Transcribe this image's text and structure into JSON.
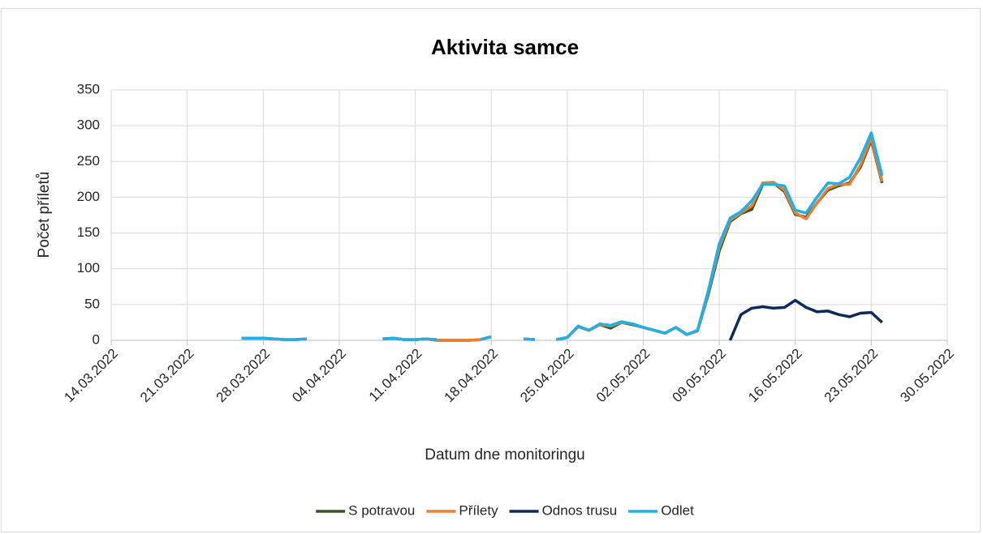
{
  "chart_data": {
    "type": "line",
    "title": "Aktivita samce",
    "x_label": "Datum dne monitoringu",
    "y_label": "Počet příletů",
    "x": [
      "26.03.2022",
      "27.03.2022",
      "28.03.2022",
      "29.03.2022",
      "30.03.2022",
      "31.03.2022",
      "01.04.2022",
      "02.04.2022",
      "03.04.2022",
      "04.04.2022",
      "05.04.2022",
      "06.04.2022",
      "07.04.2022",
      "08.04.2022",
      "09.04.2022",
      "10.04.2022",
      "11.04.2022",
      "12.04.2022",
      "13.04.2022",
      "14.04.2022",
      "15.04.2022",
      "16.04.2022",
      "17.04.2022",
      "18.04.2022",
      "19.04.2022",
      "20.04.2022",
      "21.04.2022",
      "22.04.2022",
      "23.04.2022",
      "24.04.2022",
      "25.04.2022",
      "26.04.2022",
      "27.04.2022",
      "28.04.2022",
      "29.04.2022",
      "30.04.2022",
      "01.05.2022",
      "02.05.2022",
      "03.05.2022",
      "04.05.2022",
      "05.05.2022",
      "06.05.2022",
      "07.05.2022",
      "08.05.2022",
      "09.05.2022",
      "10.05.2022",
      "11.05.2022",
      "12.05.2022",
      "13.05.2022",
      "14.05.2022",
      "15.05.2022",
      "16.05.2022",
      "17.05.2022",
      "18.05.2022",
      "19.05.2022",
      "20.05.2022",
      "21.05.2022",
      "22.05.2022",
      "23.05.2022",
      "24.05.2022"
    ],
    "series": [
      {
        "name": "S potravou",
        "color": "#375623",
        "values": [
          3,
          3,
          3,
          2,
          1,
          1,
          2,
          null,
          null,
          null,
          null,
          null,
          null,
          2,
          3,
          1,
          1,
          2,
          0,
          0,
          0,
          0,
          1,
          5,
          null,
          null,
          2,
          1,
          null,
          1,
          4,
          19,
          14,
          22,
          17,
          25,
          22,
          18,
          14,
          10,
          18,
          8,
          13,
          65,
          125,
          166,
          177,
          183,
          218,
          220,
          208,
          176,
          172,
          192,
          210,
          216,
          220,
          242,
          280,
          220
        ]
      },
      {
        "name": "Přílety",
        "color": "#ed7d31",
        "values": [
          3,
          3,
          3,
          2,
          1,
          1,
          2,
          null,
          null,
          null,
          null,
          null,
          null,
          2,
          3,
          1,
          1,
          2,
          0,
          0,
          0,
          0,
          1,
          5,
          null,
          null,
          2,
          1,
          null,
          1,
          4,
          19,
          14,
          22,
          20,
          25,
          23,
          18,
          14,
          10,
          18,
          8,
          13,
          68,
          130,
          168,
          178,
          188,
          220,
          221,
          210,
          178,
          170,
          192,
          212,
          218,
          218,
          245,
          283,
          222
        ]
      },
      {
        "name": "Odnos trusu",
        "color": "#0e2a5c",
        "values": [
          null,
          null,
          null,
          null,
          null,
          null,
          null,
          null,
          null,
          null,
          null,
          null,
          null,
          null,
          null,
          null,
          null,
          null,
          null,
          null,
          null,
          null,
          null,
          null,
          null,
          null,
          null,
          null,
          null,
          null,
          null,
          null,
          null,
          null,
          null,
          null,
          null,
          null,
          null,
          null,
          null,
          null,
          null,
          null,
          null,
          0,
          36,
          45,
          47,
          45,
          46,
          56,
          46,
          40,
          41,
          36,
          33,
          38,
          39,
          25
        ]
      },
      {
        "name": "Odlet",
        "color": "#1fb0e8",
        "values": [
          3,
          3,
          3,
          2,
          1,
          1,
          2,
          null,
          null,
          null,
          null,
          null,
          null,
          2,
          3,
          1,
          1,
          2,
          1,
          null,
          null,
          null,
          1,
          5,
          null,
          null,
          2,
          1,
          null,
          1,
          4,
          20,
          14,
          23,
          21,
          26,
          23,
          18,
          14,
          10,
          18,
          8,
          14,
          70,
          135,
          171,
          180,
          195,
          218,
          218,
          216,
          182,
          178,
          200,
          220,
          219,
          228,
          255,
          290,
          230
        ]
      }
    ],
    "xlim": [
      "14.03.2022",
      "30.05.2022"
    ],
    "xticks": [
      "14.03.2022",
      "21.03.2022",
      "28.03.2022",
      "04.04.2022",
      "11.04.2022",
      "18.04.2022",
      "25.04.2022",
      "02.05.2022",
      "09.05.2022",
      "16.05.2022",
      "23.05.2022",
      "30.05.2022"
    ],
    "ylim": [
      0,
      350
    ],
    "yticks": [
      0,
      50,
      100,
      150,
      200,
      250,
      300,
      350
    ],
    "grid": true,
    "legend": "bottom"
  }
}
